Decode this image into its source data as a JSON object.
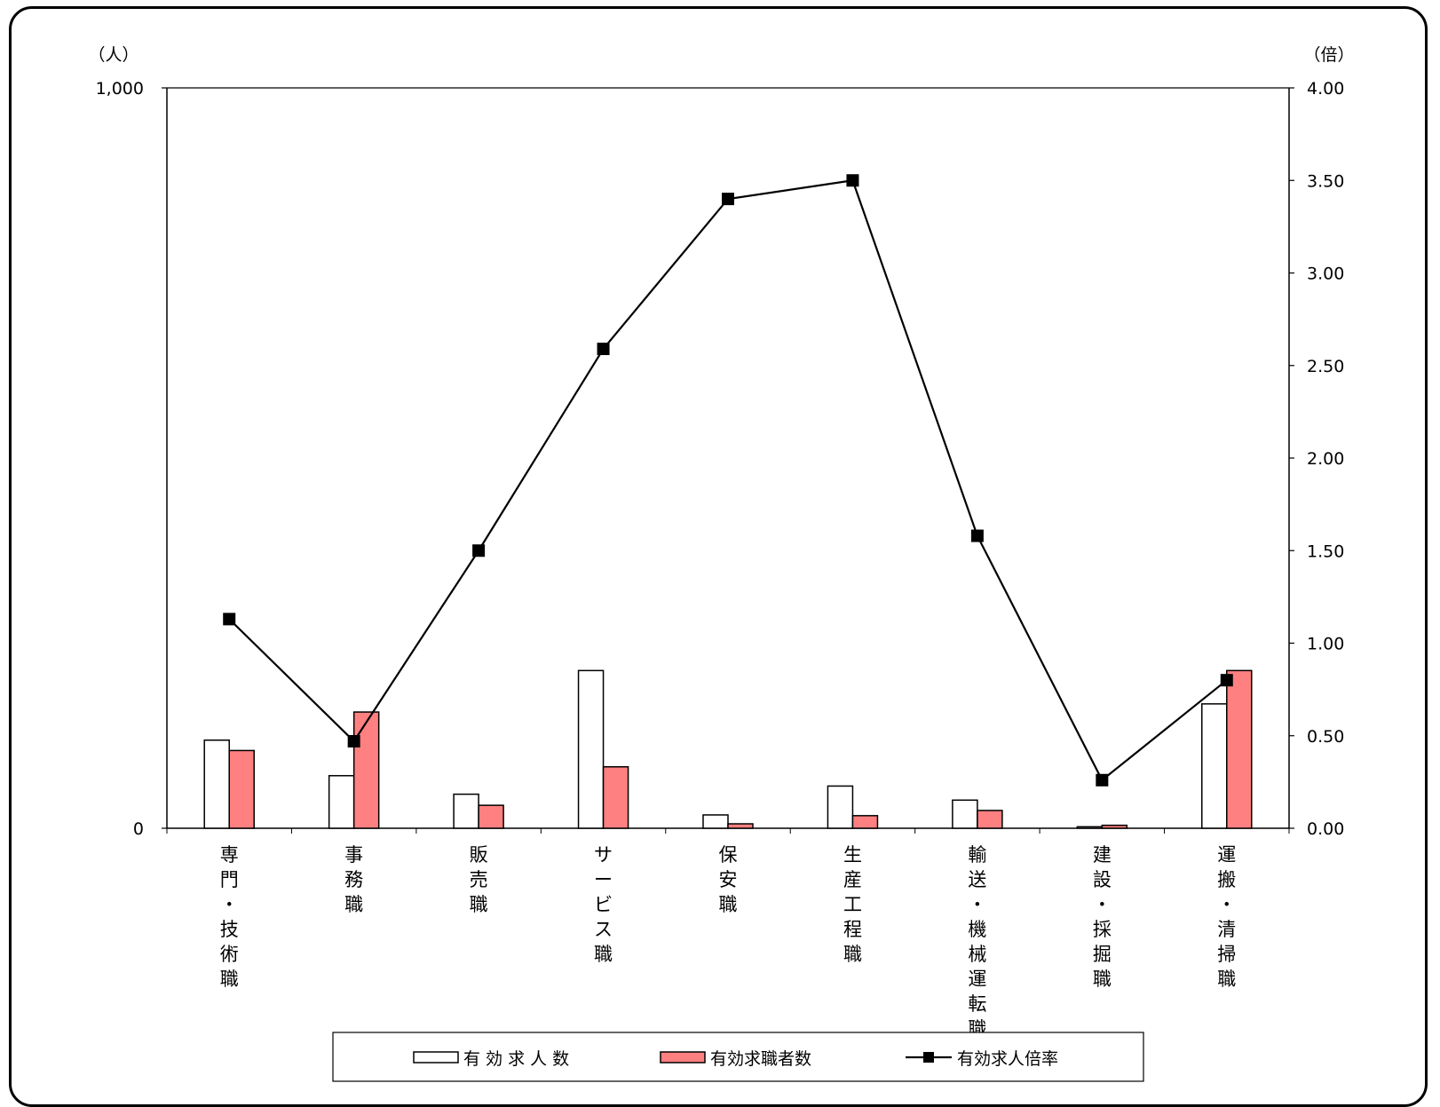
{
  "chart_data": {
    "type": "bar",
    "categories": [
      "専門・技術職",
      "事務職",
      "販売職",
      "サービス職",
      "保安職",
      "生産工程職",
      "輸送・機械運転職",
      "建設・採掘職",
      "運搬・清掃職"
    ],
    "series": [
      {
        "name": "有 効 求 人 数",
        "type": "bar",
        "axis": "left",
        "values": [
          119,
          71,
          46,
          213,
          18,
          57,
          38,
          2,
          168
        ]
      },
      {
        "name": "有効求職者数",
        "type": "bar",
        "axis": "left",
        "values": [
          105,
          157,
          31,
          83,
          6,
          17,
          24,
          4,
          213
        ]
      },
      {
        "name": "有効求人倍率",
        "type": "line",
        "axis": "right",
        "values": [
          1.13,
          0.47,
          1.5,
          2.59,
          3.4,
          3.5,
          1.58,
          0.26,
          0.8
        ]
      }
    ],
    "y_left": {
      "unit": "（人）",
      "ylim": [
        0,
        1000
      ],
      "ticks": [
        "0",
        "1,000"
      ]
    },
    "y_right": {
      "unit": "（倍）",
      "ylim": [
        0,
        4
      ],
      "ticks": [
        "0.00",
        "0.50",
        "1.00",
        "1.50",
        "2.00",
        "2.50",
        "3.00",
        "3.50",
        "4.00"
      ]
    },
    "colors": {
      "bar1_fill": "#ffffff",
      "bar2_fill": "#ff8080",
      "line": "#000000",
      "marker": "#000000"
    },
    "legend_position": "bottom",
    "grid": false
  }
}
